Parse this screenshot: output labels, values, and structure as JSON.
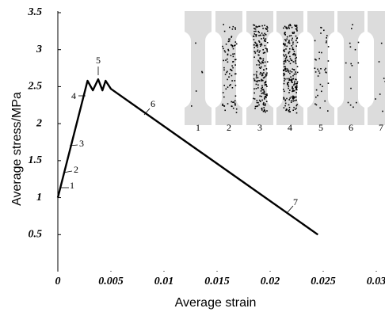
{
  "chart_data": {
    "type": "line",
    "x_label": "Average strain",
    "y_label": "Average stress/MPa",
    "x": [
      0,
      0.0028,
      0.0033,
      0.0038,
      0.0042,
      0.0045,
      0.005,
      0.0245
    ],
    "series": [
      {
        "color": "#000000",
        "values": [
          1.0,
          2.58,
          2.45,
          2.6,
          2.45,
          2.58,
          2.47,
          0.5
        ]
      }
    ],
    "xlim": [
      0,
      0.03
    ],
    "xticks": [
      0,
      0.005,
      0.01,
      0.015,
      0.02,
      0.025,
      0.03
    ],
    "ylim": [
      0,
      3.5
    ],
    "yticks": [
      0.5,
      1,
      1.5,
      2,
      2.5,
      3,
      3.5
    ],
    "annotations": [
      "1",
      "2",
      "3",
      "4",
      "5",
      "6",
      "7"
    ],
    "inset_labels": [
      "1",
      "2",
      "3",
      "4",
      "5",
      "6",
      "7"
    ]
  }
}
